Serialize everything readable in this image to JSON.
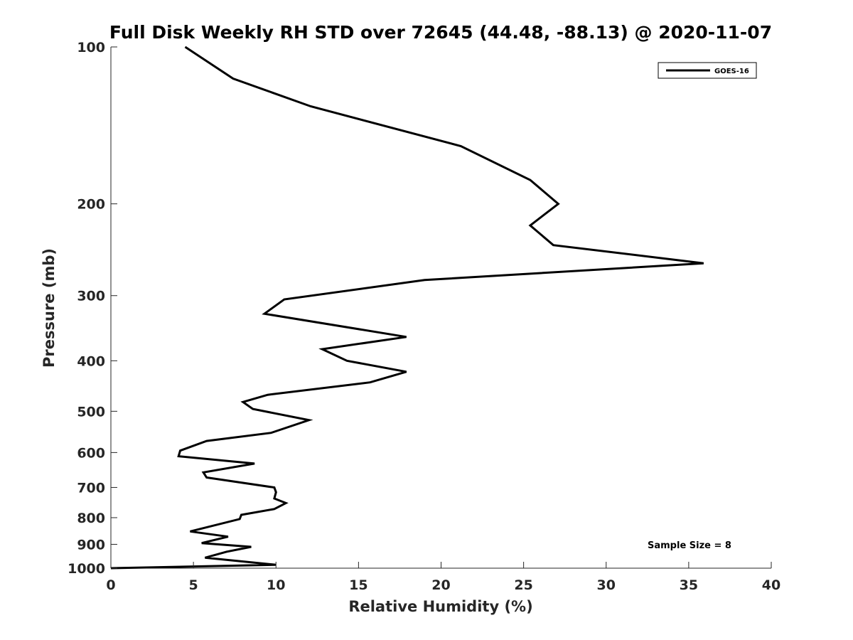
{
  "chart_data": {
    "type": "line",
    "title": "Full Disk Weekly RH STD over 72645 (44.48, -88.13) @ 2020-11-07",
    "xlabel": "Relative Humidity (%)",
    "ylabel": "Pressure (mb)",
    "xlim": [
      0,
      40
    ],
    "ylim": [
      100,
      1000
    ],
    "yscale": "log",
    "y_reversed": true,
    "x_ticks": [
      0,
      5,
      10,
      15,
      20,
      25,
      30,
      35,
      40
    ],
    "y_ticks": [
      100,
      200,
      300,
      400,
      500,
      600,
      700,
      800,
      900,
      1000
    ],
    "grid": false,
    "legend_location": "top-right",
    "annotation": "Sample Size = 8",
    "series": [
      {
        "name": "GOES-16",
        "color": "#000000",
        "x": [
          4.5,
          7.4,
          12.1,
          21.2,
          25.4,
          27.1,
          25.4,
          26.8,
          35.9,
          19.0,
          10.5,
          9.3,
          17.9,
          12.8,
          14.3,
          17.9,
          15.7,
          9.5,
          8.0,
          8.6,
          12.0,
          9.7,
          5.8,
          4.2,
          4.1,
          8.7,
          5.6,
          5.8,
          9.9,
          10.0,
          9.9,
          10.6,
          9.9,
          7.9,
          7.8,
          4.8,
          7.1,
          5.5,
          8.5,
          7.0,
          5.7,
          10.0,
          0.0
        ],
        "y": [
          100,
          115,
          130,
          155,
          180,
          200,
          220,
          240,
          260,
          280,
          305,
          325,
          360,
          380,
          400,
          420,
          440,
          465,
          480,
          495,
          520,
          550,
          570,
          595,
          610,
          630,
          655,
          670,
          700,
          715,
          735,
          750,
          770,
          790,
          805,
          850,
          870,
          895,
          910,
          930,
          955,
          985,
          1000
        ]
      }
    ]
  }
}
